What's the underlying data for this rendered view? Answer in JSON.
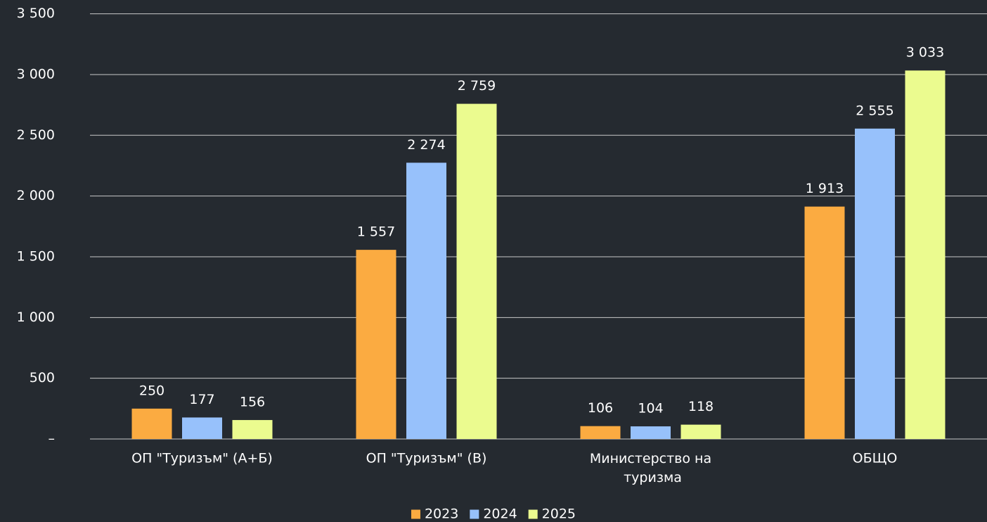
{
  "chart_data": {
    "type": "bar",
    "categories": [
      "ОП \"Туризъм\" (А+Б)",
      "ОП \"Туризъм\" (В)",
      "Министерство на туризма",
      "ОБЩО"
    ],
    "series": [
      {
        "name": "2023",
        "color": "#fbab41",
        "values": [
          250,
          1557,
          106,
          1913
        ],
        "value_labels": [
          "250",
          "1 557",
          "106",
          "1 913"
        ]
      },
      {
        "name": "2024",
        "color": "#97c1fb",
        "values": [
          177,
          2274,
          104,
          2555
        ],
        "value_labels": [
          "177",
          "2 274",
          "104",
          "2 555"
        ]
      },
      {
        "name": "2025",
        "color": "#ebfb8f",
        "values": [
          156,
          2759,
          118,
          3033
        ],
        "value_labels": [
          "156",
          "2 759",
          "118",
          "3 033"
        ]
      }
    ],
    "ylim": [
      0,
      3500
    ],
    "yticks": [
      {
        "value": 0,
        "label": "–"
      },
      500,
      {
        "value": 1000,
        "label": "1 000"
      },
      {
        "value": 1500,
        "label": "1 500"
      },
      {
        "value": 2000,
        "label": "2 000"
      },
      {
        "value": 2500,
        "label": "2 500"
      },
      {
        "value": 3000,
        "label": "3 000"
      },
      {
        "value": 3500,
        "label": "3 500"
      }
    ],
    "grid": true,
    "legend": "bottom"
  }
}
